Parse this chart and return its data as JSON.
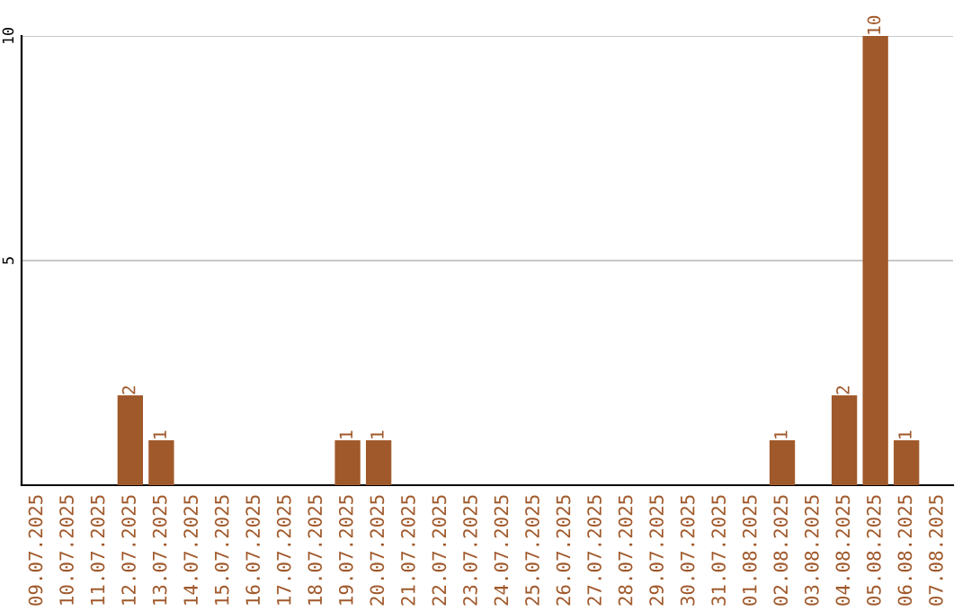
{
  "chart_data": {
    "type": "bar",
    "categories": [
      "09.07.2025",
      "10.07.2025",
      "11.07.2025",
      "12.07.2025",
      "13.07.2025",
      "14.07.2025",
      "15.07.2025",
      "16.07.2025",
      "17.07.2025",
      "18.07.2025",
      "19.07.2025",
      "20.07.2025",
      "21.07.2025",
      "22.07.2025",
      "23.07.2025",
      "24.07.2025",
      "25.07.2025",
      "26.07.2025",
      "27.07.2025",
      "28.07.2025",
      "29.07.2025",
      "30.07.2025",
      "31.07.2025",
      "01.08.2025",
      "02.08.2025",
      "03.08.2025",
      "04.08.2025",
      "05.08.2025",
      "06.08.2025",
      "07.08.2025"
    ],
    "values": [
      0,
      0,
      0,
      2,
      1,
      0,
      0,
      0,
      0,
      0,
      1,
      1,
      0,
      0,
      0,
      0,
      0,
      0,
      0,
      0,
      0,
      0,
      0,
      0,
      1,
      0,
      2,
      10,
      1,
      0
    ],
    "value_labels": [
      null,
      null,
      null,
      "2",
      "1",
      null,
      null,
      null,
      null,
      null,
      "1",
      "1",
      null,
      null,
      null,
      null,
      null,
      null,
      null,
      null,
      null,
      null,
      null,
      null,
      "1",
      null,
      "2",
      "10",
      "1",
      null
    ],
    "color": "#a0592b",
    "ylim": [
      0,
      10
    ],
    "yticks": [
      {
        "value": 0,
        "label": null
      },
      5,
      10
    ],
    "grid": "y"
  }
}
